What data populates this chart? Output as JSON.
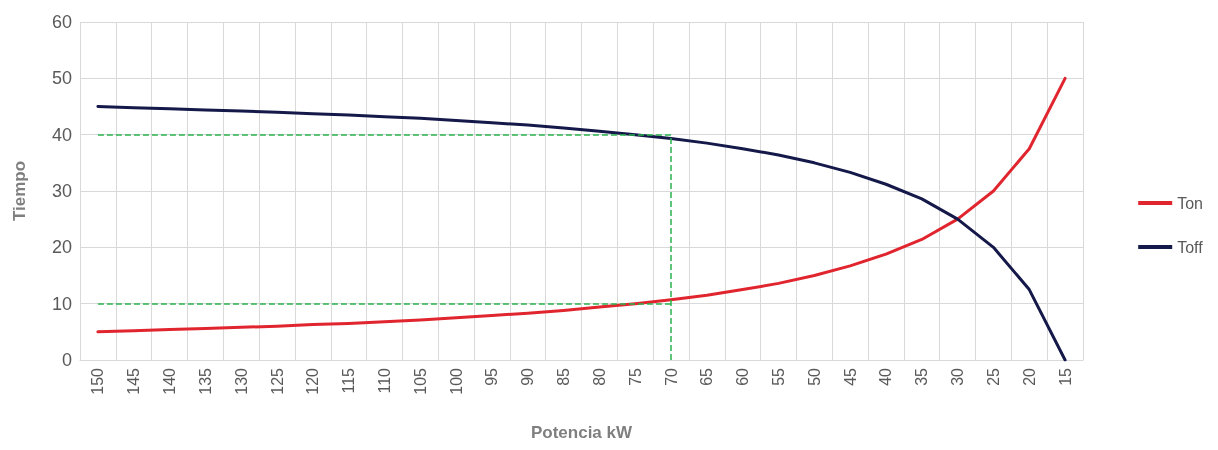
{
  "chart_data": {
    "type": "line",
    "xlabel": "Potencia kW",
    "ylabel": "Tiempo",
    "categories": [
      "150",
      "145",
      "140",
      "135",
      "130",
      "125",
      "120",
      "115",
      "110",
      "105",
      "100",
      "95",
      "90",
      "85",
      "80",
      "75",
      "70",
      "65",
      "60",
      "55",
      "50",
      "45",
      "40",
      "35",
      "30",
      "25",
      "20",
      "15"
    ],
    "series": [
      {
        "name": "Ton",
        "color": "#e1252f",
        "values": [
          5,
          5.2,
          5.4,
          5.6,
          5.8,
          6,
          6.3,
          6.5,
          6.8,
          7.1,
          7.5,
          7.9,
          8.3,
          8.8,
          9.4,
          10,
          10.7,
          11.5,
          12.5,
          13.6,
          15,
          16.7,
          18.8,
          21.4,
          25,
          30,
          37.5,
          50
        ]
      },
      {
        "name": "Toff",
        "color": "#14194a",
        "values": [
          45,
          44.8,
          44.6,
          44.4,
          44.2,
          44,
          43.7,
          43.5,
          43.2,
          42.9,
          42.5,
          42.1,
          41.7,
          41.2,
          40.6,
          40,
          39.3,
          38.5,
          37.5,
          36.4,
          35,
          33.3,
          31.2,
          28.6,
          25,
          20,
          12.5,
          0
        ]
      }
    ],
    "ylim": [
      0,
      60
    ],
    "yticks": [
      0,
      10,
      20,
      30,
      40,
      50,
      60
    ],
    "grid": true,
    "legend": "right",
    "marker": "none",
    "line_style": "solid",
    "ref_lines": [
      {
        "axis": "y",
        "value": 40,
        "label": null,
        "color": "#2bb24c",
        "line_style": "dashed"
      },
      {
        "axis": "y",
        "value": 10,
        "label": null,
        "color": "#2bb24c",
        "line_style": "dashed"
      },
      {
        "axis": "x",
        "value": "70",
        "label": null,
        "color": "#2bb24c",
        "line_style": "dashed"
      }
    ]
  }
}
